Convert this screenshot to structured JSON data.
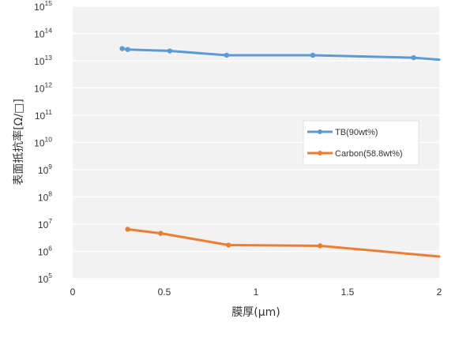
{
  "chart_data": {
    "type": "line",
    "xlabel": "膜厚(μm)",
    "ylabel": "表面抵抗率[Ω/□]",
    "xlim": [
      0,
      2
    ],
    "ylim": [
      100000.0,
      1000000000000000.0
    ],
    "yscale": "log",
    "x_ticks": [
      "0",
      "0.5",
      "1",
      "1.5",
      "2"
    ],
    "y_ticks": [
      {
        "base": "10",
        "exp": "5"
      },
      {
        "base": "10",
        "exp": "6"
      },
      {
        "base": "10",
        "exp": "7"
      },
      {
        "base": "10",
        "exp": "8"
      },
      {
        "base": "10",
        "exp": "9"
      },
      {
        "base": "10",
        "exp": "10"
      },
      {
        "base": "10",
        "exp": "11"
      },
      {
        "base": "10",
        "exp": "12"
      },
      {
        "base": "10",
        "exp": "13"
      },
      {
        "base": "10",
        "exp": "14"
      },
      {
        "base": "10",
        "exp": "15"
      }
    ],
    "grid": "horizontal",
    "legend_position": "right-middle",
    "series": [
      {
        "name": "TB(90wt%)",
        "color": "#5b9bd5",
        "points": [
          {
            "x": 0.27,
            "y": 28000000000000.0
          },
          {
            "x": 0.3,
            "y": 26000000000000.0
          },
          {
            "x": 0.53,
            "y": 23000000000000.0
          },
          {
            "x": 0.84,
            "y": 16000000000000.0
          },
          {
            "x": 1.31,
            "y": 16000000000000.0
          },
          {
            "x": 1.86,
            "y": 13000000000000.0
          },
          {
            "x": 2.0,
            "y": 11000000000000.0
          }
        ]
      },
      {
        "name": "Carbon(58.8wt%)",
        "color": "#ed7d31",
        "points": [
          {
            "x": 0.3,
            "y": 6500000.0
          },
          {
            "x": 0.48,
            "y": 4600000.0
          },
          {
            "x": 0.85,
            "y": 1700000.0
          },
          {
            "x": 1.35,
            "y": 1600000.0
          },
          {
            "x": 2.0,
            "y": 650000.0
          }
        ]
      }
    ]
  }
}
